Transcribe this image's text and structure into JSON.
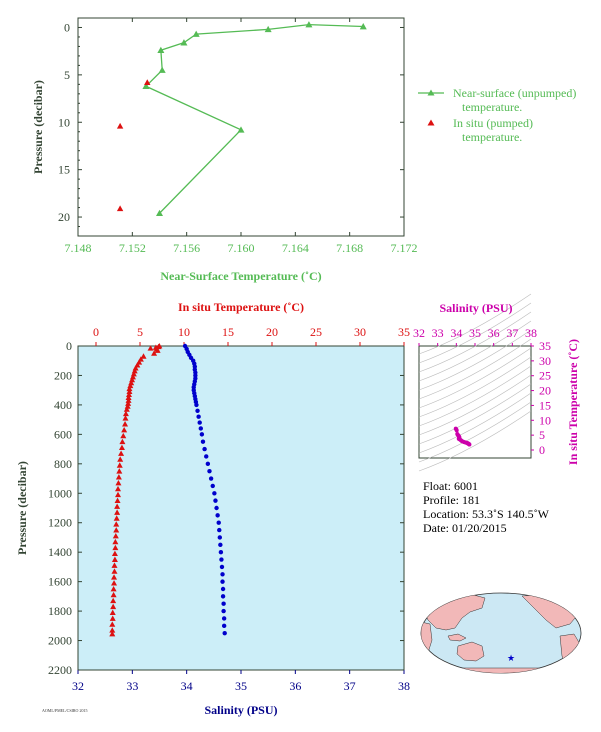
{
  "colors": {
    "green": "#55bb55",
    "red": "#dd1111",
    "blue": "#0000cc",
    "magenta": "#cc00aa",
    "navy": "#000088",
    "axis_dark": "#334433",
    "panel_bg": "#cceef8",
    "land": "#f2b8b8",
    "ocean": "#cce8f4"
  },
  "top_chart": {
    "xlabel": "Near-Surface Temperature (˚C)",
    "ylabel": "Pressure (decibar)",
    "legend": {
      "line1_a": "Near-surface (unpumped)",
      "line1_b": "temperature.",
      "line2_a": "In situ (pumped)",
      "line2_b": "temperature."
    },
    "xticklabels": [
      "7.148",
      "7.152",
      "7.156",
      "7.160",
      "7.164",
      "7.168",
      "7.172"
    ],
    "yticklabels": [
      "0",
      "5",
      "10",
      "15",
      "20"
    ]
  },
  "main_chart": {
    "top_label": "In situ Temperature (˚C)",
    "bottom_label": "Salinity (PSU)",
    "ylabel": "Pressure (decibar)",
    "temp_ticks": [
      "0",
      "5",
      "10",
      "15",
      "20",
      "25",
      "30",
      "35"
    ],
    "sal_ticks": [
      "32",
      "33",
      "34",
      "35",
      "36",
      "37",
      "38"
    ],
    "p_ticks": [
      "0",
      "200",
      "400",
      "600",
      "800",
      "1000",
      "1200",
      "1400",
      "1600",
      "1800",
      "2000",
      "2200"
    ]
  },
  "ts_chart": {
    "top_label": "Salinity (PSU)",
    "right_label": "In situ Temperature (˚C)",
    "sal_ticks": [
      "32",
      "33",
      "34",
      "35",
      "36",
      "37",
      "38"
    ],
    "temp_ticks": [
      "0",
      "5",
      "10",
      "15",
      "20",
      "25",
      "30",
      "35"
    ]
  },
  "float_info": {
    "float": "Float:  6001",
    "profile": "Profile:  181",
    "location": "Location:  53.3˚S  140.5˚W",
    "date": "Date:  01/20/2015"
  },
  "footer_code": "AOML/PMEL/CSIRO 2015",
  "chart_data": [
    {
      "type": "line",
      "title": "",
      "xlabel": "Near-Surface Temperature (˚C)",
      "ylabel": "Pressure (decibar)",
      "xlim": [
        7.148,
        7.172
      ],
      "ylim": [
        22,
        -1
      ],
      "series": [
        {
          "name": "Near-surface (unpumped) temperature.",
          "points": [
            [
              7.169,
              -0.1
            ],
            [
              7.165,
              -0.3
            ],
            [
              7.162,
              0.2
            ],
            [
              7.1567,
              0.7
            ],
            [
              7.1558,
              1.6
            ],
            [
              7.1541,
              2.4
            ],
            [
              7.1542,
              4.5
            ],
            [
              7.153,
              6.2
            ],
            [
              7.16,
              10.8
            ],
            [
              7.154,
              19.6
            ]
          ]
        },
        {
          "name": "In situ (pumped) temperature.",
          "points": [
            [
              7.1531,
              5.8
            ],
            [
              7.1511,
              10.4
            ],
            [
              7.1511,
              19.1
            ]
          ]
        }
      ]
    },
    {
      "type": "scatter",
      "title": "",
      "ylabel": "Pressure (decibar)",
      "ylim": [
        2200,
        0
      ],
      "temperature_axis": {
        "label": "In situ Temperature (˚C)",
        "range": [
          -1.7,
          35
        ]
      },
      "salinity_axis": {
        "label": "Salinity (PSU)",
        "range": [
          32,
          38
        ]
      },
      "series": [
        {
          "name": "In situ Temperature (˚C)",
          "p_t": [
            [
              0,
              7.2
            ],
            [
              5,
              7.1
            ],
            [
              10,
              6.8
            ],
            [
              15,
              6.2
            ],
            [
              20,
              6.9
            ],
            [
              30,
              7.0
            ],
            [
              50,
              6.6
            ],
            [
              70,
              5.4
            ],
            [
              90,
              5.1
            ],
            [
              110,
              4.9
            ],
            [
              130,
              4.7
            ],
            [
              150,
              4.5
            ],
            [
              170,
              4.4
            ],
            [
              190,
              4.3
            ],
            [
              210,
              4.2
            ],
            [
              230,
              4.1
            ],
            [
              250,
              4.0
            ],
            [
              270,
              3.9
            ],
            [
              290,
              3.8
            ],
            [
              310,
              3.8
            ],
            [
              330,
              3.75
            ],
            [
              350,
              3.7
            ],
            [
              370,
              3.7
            ],
            [
              390,
              3.65
            ],
            [
              410,
              3.6
            ],
            [
              430,
              3.5
            ],
            [
              460,
              3.4
            ],
            [
              490,
              3.35
            ],
            [
              530,
              3.3
            ],
            [
              570,
              3.2
            ],
            [
              610,
              3.1
            ],
            [
              650,
              3.0
            ],
            [
              690,
              2.95
            ],
            [
              730,
              2.85
            ],
            [
              770,
              2.75
            ],
            [
              810,
              2.7
            ],
            [
              850,
              2.65
            ],
            [
              890,
              2.6
            ],
            [
              930,
              2.55
            ],
            [
              970,
              2.5
            ],
            [
              1010,
              2.5
            ],
            [
              1050,
              2.45
            ],
            [
              1090,
              2.4
            ],
            [
              1130,
              2.4
            ],
            [
              1170,
              2.35
            ],
            [
              1210,
              2.3
            ],
            [
              1250,
              2.3
            ],
            [
              1290,
              2.25
            ],
            [
              1330,
              2.2
            ],
            [
              1370,
              2.2
            ],
            [
              1410,
              2.15
            ],
            [
              1450,
              2.15
            ],
            [
              1490,
              2.1
            ],
            [
              1530,
              2.1
            ],
            [
              1570,
              2.05
            ],
            [
              1610,
              2.05
            ],
            [
              1650,
              2.0
            ],
            [
              1690,
              2.0
            ],
            [
              1730,
              1.95
            ],
            [
              1770,
              1.95
            ],
            [
              1810,
              1.9
            ],
            [
              1850,
              1.9
            ],
            [
              1890,
              1.85
            ],
            [
              1930,
              1.85
            ],
            [
              1955,
              1.85
            ]
          ]
        },
        {
          "name": "Salinity (PSU)",
          "p_s": [
            [
              0,
              33.97
            ],
            [
              20,
              34.0
            ],
            [
              40,
              34.02
            ],
            [
              60,
              34.05
            ],
            [
              80,
              34.08
            ],
            [
              100,
              34.12
            ],
            [
              120,
              34.14
            ],
            [
              140,
              34.15
            ],
            [
              160,
              34.15
            ],
            [
              180,
              34.16
            ],
            [
              200,
              34.16
            ],
            [
              220,
              34.16
            ],
            [
              240,
              34.15
            ],
            [
              260,
              34.14
            ],
            [
              280,
              34.13
            ],
            [
              300,
              34.13
            ],
            [
              320,
              34.14
            ],
            [
              340,
              34.15
            ],
            [
              360,
              34.16
            ],
            [
              380,
              34.17
            ],
            [
              400,
              34.18
            ],
            [
              440,
              34.2
            ],
            [
              480,
              34.22
            ],
            [
              520,
              34.24
            ],
            [
              560,
              34.26
            ],
            [
              600,
              34.28
            ],
            [
              650,
              34.3
            ],
            [
              700,
              34.33
            ],
            [
              750,
              34.36
            ],
            [
              800,
              34.39
            ],
            [
              850,
              34.42
            ],
            [
              900,
              34.45
            ],
            [
              950,
              34.48
            ],
            [
              1000,
              34.51
            ],
            [
              1050,
              34.53
            ],
            [
              1100,
              34.55
            ],
            [
              1150,
              34.57
            ],
            [
              1200,
              34.59
            ],
            [
              1250,
              34.6
            ],
            [
              1300,
              34.61
            ],
            [
              1350,
              34.62
            ],
            [
              1400,
              34.63
            ],
            [
              1450,
              34.64
            ],
            [
              1500,
              34.65
            ],
            [
              1550,
              34.66
            ],
            [
              1600,
              34.66
            ],
            [
              1650,
              34.67
            ],
            [
              1700,
              34.67
            ],
            [
              1750,
              34.68
            ],
            [
              1800,
              34.68
            ],
            [
              1850,
              34.69
            ],
            [
              1900,
              34.69
            ],
            [
              1950,
              34.7
            ]
          ]
        }
      ]
    },
    {
      "type": "scatter",
      "title": "",
      "xlabel": "Salinity (PSU)",
      "ylabel": "In situ Temperature (˚C)",
      "xlim": [
        32,
        38
      ],
      "ylim": [
        -1.5,
        35
      ],
      "series": [
        {
          "name": "T-S",
          "points": [
            [
              33.97,
              7.2
            ],
            [
              34.0,
              6.9
            ],
            [
              34.02,
              6.6
            ],
            [
              34.05,
              5.4
            ],
            [
              34.08,
              5.1
            ],
            [
              34.12,
              4.8
            ],
            [
              34.15,
              4.5
            ],
            [
              34.16,
              4.3
            ],
            [
              34.16,
              4.1
            ],
            [
              34.14,
              3.9
            ],
            [
              34.13,
              3.8
            ],
            [
              34.15,
              3.7
            ],
            [
              34.18,
              3.6
            ],
            [
              34.22,
              3.4
            ],
            [
              34.26,
              3.2
            ],
            [
              34.3,
              3.0
            ],
            [
              34.36,
              2.8
            ],
            [
              34.42,
              2.65
            ],
            [
              34.48,
              2.55
            ],
            [
              34.53,
              2.45
            ],
            [
              34.57,
              2.4
            ],
            [
              34.6,
              2.3
            ],
            [
              34.62,
              2.2
            ],
            [
              34.64,
              2.15
            ],
            [
              34.66,
              2.05
            ],
            [
              34.67,
              2.0
            ],
            [
              34.68,
              1.95
            ],
            [
              34.69,
              1.9
            ],
            [
              34.7,
              1.85
            ]
          ]
        }
      ]
    }
  ]
}
